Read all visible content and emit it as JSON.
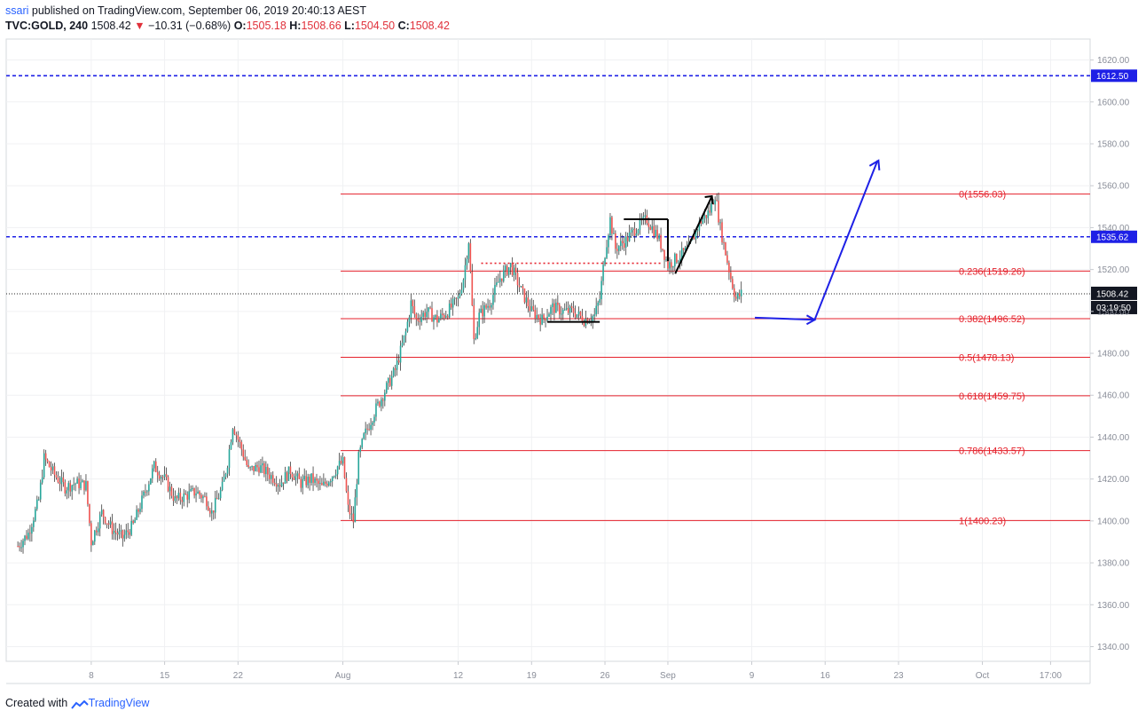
{
  "header": {
    "user": "ssari",
    "published_text": "published on TradingView.com, September 06, 2019 20:40:13 AEST",
    "symbol": "TVC:GOLD, 240",
    "last": "1508.42",
    "change": "−10.31 (−0.68%)",
    "open_label": "O:",
    "open": "1505.18",
    "high_label": "H:",
    "high": "1508.66",
    "low_label": "L:",
    "low": "1504.50",
    "close_label": "C:",
    "close": "1508.42"
  },
  "footer": {
    "created_with": "Created with",
    "brand": "TradingView"
  },
  "colors": {
    "up": "#26a69a",
    "down": "#ef5350",
    "fib": "#e5212b",
    "level": "#1e20e6",
    "arrow": "#1e20e6",
    "draw": "#000000"
  },
  "chart_data": {
    "type": "candlestick",
    "symbol": "TVC:GOLD",
    "interval": "240",
    "ylim": [
      1333,
      1630
    ],
    "y_ticks": [
      "1340.00",
      "1360.00",
      "1380.00",
      "1400.00",
      "1420.00",
      "1440.00",
      "1460.00",
      "1480.00",
      "1500.00",
      "1520.00",
      "1540.00",
      "1560.00",
      "1580.00",
      "1600.00",
      "1620.00"
    ],
    "x_ticks": [
      "8",
      "15",
      "22",
      "Aug",
      "12",
      "19",
      "26",
      "Sep",
      "9",
      "16",
      "23",
      "Oct",
      "17:00"
    ],
    "x_tick_days": [
      8,
      15,
      22,
      32,
      43,
      50,
      57,
      63,
      71,
      78,
      85,
      93,
      99.5
    ],
    "horizontal_levels": [
      {
        "label": "1612.50",
        "value": 1612.5
      },
      {
        "label": "1535.62",
        "value": 1535.62
      }
    ],
    "current_price": {
      "label": "1508.42",
      "value": 1508.42,
      "countdown": "03:19:50"
    },
    "fibonacci": [
      {
        "label": "0(1556.03)",
        "value": 1556.03
      },
      {
        "label": "0.236(1519.26)",
        "value": 1519.26
      },
      {
        "label": "0.382(1496.52)",
        "value": 1496.52
      },
      {
        "label": "0.5(1478.13)",
        "value": 1478.13
      },
      {
        "label": "0.618(1459.75)",
        "value": 1459.75
      },
      {
        "label": "0.786(1433.57)",
        "value": 1433.57
      },
      {
        "label": "1(1400.23)",
        "value": 1400.23
      }
    ],
    "price_path": [
      [
        1.0,
        1388
      ],
      [
        2.0,
        1394
      ],
      [
        3.0,
        1410
      ],
      [
        3.5,
        1430
      ],
      [
        4.5,
        1422
      ],
      [
        5.5,
        1416
      ],
      [
        6.5,
        1418
      ],
      [
        7.5,
        1417
      ],
      [
        8.0,
        1390
      ],
      [
        9.0,
        1404
      ],
      [
        10.0,
        1396
      ],
      [
        11.0,
        1392
      ],
      [
        12.0,
        1398
      ],
      [
        13.0,
        1412
      ],
      [
        14.0,
        1426
      ],
      [
        15.0,
        1420
      ],
      [
        16.0,
        1410
      ],
      [
        17.0,
        1412
      ],
      [
        18.0,
        1414
      ],
      [
        19.0,
        1410
      ],
      [
        19.5,
        1404
      ],
      [
        20.5,
        1416
      ],
      [
        21.0,
        1428
      ],
      [
        21.5,
        1446
      ],
      [
        22.5,
        1432
      ],
      [
        23.0,
        1424
      ],
      [
        24.0,
        1426
      ],
      [
        25.0,
        1422
      ],
      [
        26.0,
        1418
      ],
      [
        27.0,
        1424
      ],
      [
        28.0,
        1418
      ],
      [
        29.0,
        1420
      ],
      [
        30.0,
        1416
      ],
      [
        31.0,
        1422
      ],
      [
        31.5,
        1426
      ],
      [
        32.0,
        1428
      ],
      [
        32.5,
        1406
      ],
      [
        33.0,
        1400
      ],
      [
        33.5,
        1430
      ],
      [
        34.0,
        1440
      ],
      [
        35.0,
        1452
      ],
      [
        36.0,
        1462
      ],
      [
        37.0,
        1472
      ],
      [
        38.0,
        1490
      ],
      [
        38.5,
        1504
      ],
      [
        39.0,
        1496
      ],
      [
        40.0,
        1500
      ],
      [
        41.0,
        1496
      ],
      [
        42.0,
        1500
      ],
      [
        43.0,
        1506
      ],
      [
        43.5,
        1516
      ],
      [
        44.0,
        1534
      ],
      [
        44.5,
        1486
      ],
      [
        45.0,
        1498
      ],
      [
        46.0,
        1504
      ],
      [
        47.0,
        1516
      ],
      [
        48.0,
        1522
      ],
      [
        49.0,
        1510
      ],
      [
        50.0,
        1500
      ],
      [
        51.0,
        1496
      ],
      [
        52.0,
        1502
      ],
      [
        53.0,
        1500
      ],
      [
        54.0,
        1500
      ],
      [
        55.0,
        1496
      ],
      [
        56.0,
        1498
      ],
      [
        56.5,
        1506
      ],
      [
        57.0,
        1528
      ],
      [
        57.5,
        1544
      ],
      [
        58.0,
        1530
      ],
      [
        59.0,
        1534
      ],
      [
        60.0,
        1540
      ],
      [
        61.0,
        1544
      ],
      [
        62.0,
        1536
      ],
      [
        62.5,
        1530
      ],
      [
        63.0,
        1522
      ],
      [
        64.0,
        1526
      ],
      [
        65.0,
        1530
      ],
      [
        66.0,
        1542
      ],
      [
        67.0,
        1548
      ],
      [
        67.5,
        1556
      ],
      [
        68.0,
        1540
      ],
      [
        68.5,
        1528
      ],
      [
        69.0,
        1516
      ],
      [
        69.5,
        1506
      ],
      [
        70.0,
        1508.42
      ]
    ],
    "annotations": {
      "projection_arrow": [
        [
          71.3,
          1497
        ],
        [
          77.0,
          1496
        ],
        [
          83.0,
          1572
        ]
      ],
      "support_segment": [
        [
          51.5,
          1495
        ],
        [
          56.5,
          1495
        ]
      ],
      "resistance_segment": [
        [
          58.8,
          1544
        ],
        [
          63.0,
          1544
        ]
      ],
      "dotted_neckline": [
        [
          45.2,
          1523
        ],
        [
          62.5,
          1523
        ]
      ]
    }
  }
}
